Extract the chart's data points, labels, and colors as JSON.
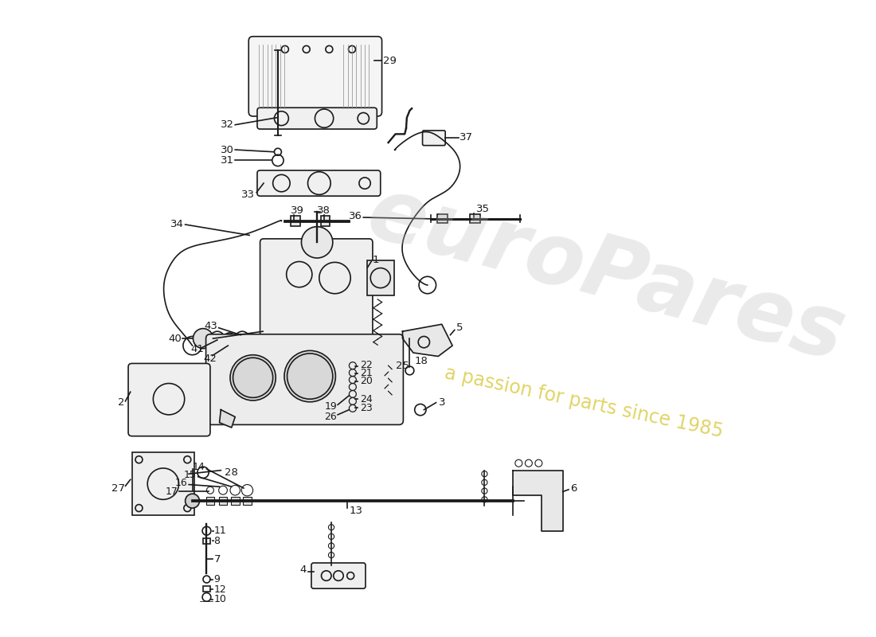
{
  "bg_color": "#ffffff",
  "line_color": "#1a1a1a",
  "watermark1": "euroPares",
  "watermark2": "a passion for parts since 1985",
  "wm_color1": "#bbbbbb",
  "wm_color2": "#ccb800",
  "fig_w": 11.0,
  "fig_h": 8.0,
  "dpi": 100
}
